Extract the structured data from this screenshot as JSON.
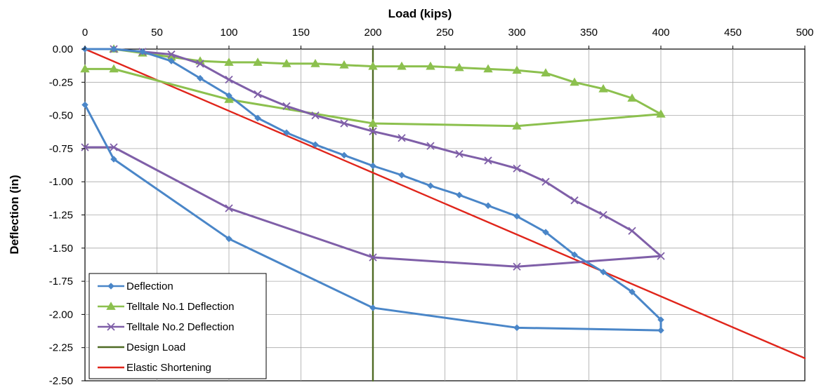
{
  "chart_data": {
    "type": "line",
    "xlabel": "Load (kips)",
    "ylabel": "Deflection (in)",
    "xlim": [
      0,
      500
    ],
    "ylim": [
      -2.5,
      0
    ],
    "x_ticks": [
      0,
      50,
      100,
      150,
      200,
      250,
      300,
      350,
      400,
      450,
      500
    ],
    "x_tick_labels": [
      "0",
      "50",
      "100",
      "150",
      "200",
      "250",
      "300",
      "350",
      "400",
      "450",
      "500"
    ],
    "y_ticks": [
      0,
      -0.25,
      -0.5,
      -0.75,
      -1.0,
      -1.25,
      -1.5,
      -1.75,
      -2.0,
      -2.25,
      -2.5
    ],
    "y_tick_labels": [
      "0.00",
      "-0.25",
      "-0.50",
      "-0.75",
      "-1.00",
      "-1.25",
      "-1.50",
      "-1.75",
      "-2.00",
      "-2.25",
      "-2.50"
    ],
    "x_axis_position": "top",
    "grid": true,
    "legend_position": "bottom-left",
    "series": [
      {
        "name": "Deflection",
        "color": "#4a86c8",
        "marker": "diamond",
        "x": [
          0,
          20,
          40,
          60,
          80,
          100,
          120,
          140,
          160,
          180,
          200,
          220,
          240,
          260,
          280,
          300,
          320,
          340,
          360,
          380,
          400,
          400,
          300,
          200,
          100,
          20,
          0
        ],
        "y": [
          0.0,
          0.0,
          -0.02,
          -0.09,
          -0.22,
          -0.35,
          -0.52,
          -0.63,
          -0.72,
          -0.8,
          -0.88,
          -0.95,
          -1.03,
          -1.1,
          -1.18,
          -1.26,
          -1.38,
          -1.55,
          -1.68,
          -1.83,
          -2.04,
          -2.12,
          -2.1,
          -1.95,
          -1.43,
          -0.83,
          -0.42
        ]
      },
      {
        "name": "Telltale No.1 Deflection",
        "color": "#8cc04e",
        "marker": "triangle",
        "x": [
          20,
          40,
          60,
          80,
          100,
          120,
          140,
          160,
          180,
          200,
          220,
          240,
          260,
          280,
          300,
          320,
          340,
          360,
          380,
          400,
          300,
          200,
          100,
          20,
          0
        ],
        "y": [
          0.0,
          -0.03,
          -0.06,
          -0.09,
          -0.1,
          -0.1,
          -0.11,
          -0.11,
          -0.12,
          -0.13,
          -0.13,
          -0.13,
          -0.14,
          -0.15,
          -0.16,
          -0.18,
          -0.25,
          -0.3,
          -0.37,
          -0.49,
          -0.58,
          -0.56,
          -0.38,
          -0.15,
          -0.15
        ]
      },
      {
        "name": "Telltale No.2 Deflection",
        "color": "#7f5fa8",
        "marker": "x",
        "x": [
          20,
          40,
          60,
          80,
          100,
          120,
          140,
          160,
          180,
          200,
          220,
          240,
          260,
          280,
          300,
          320,
          340,
          360,
          380,
          400,
          300,
          200,
          100,
          20,
          0
        ],
        "y": [
          0.0,
          -0.02,
          -0.04,
          -0.11,
          -0.23,
          -0.34,
          -0.43,
          -0.5,
          -0.56,
          -0.62,
          -0.67,
          -0.73,
          -0.79,
          -0.84,
          -0.9,
          -1.0,
          -1.14,
          -1.25,
          -1.37,
          -1.56,
          -1.64,
          -1.57,
          -1.2,
          -0.74,
          -0.74
        ]
      },
      {
        "name": "Design Load",
        "color": "#4f6b24",
        "marker": "none",
        "x": [
          200,
          200
        ],
        "y": [
          0,
          -2.5
        ]
      },
      {
        "name": "Elastic Shortening",
        "color": "#e0251b",
        "marker": "none",
        "x": [
          0,
          500
        ],
        "y": [
          0,
          -2.33
        ]
      }
    ]
  }
}
